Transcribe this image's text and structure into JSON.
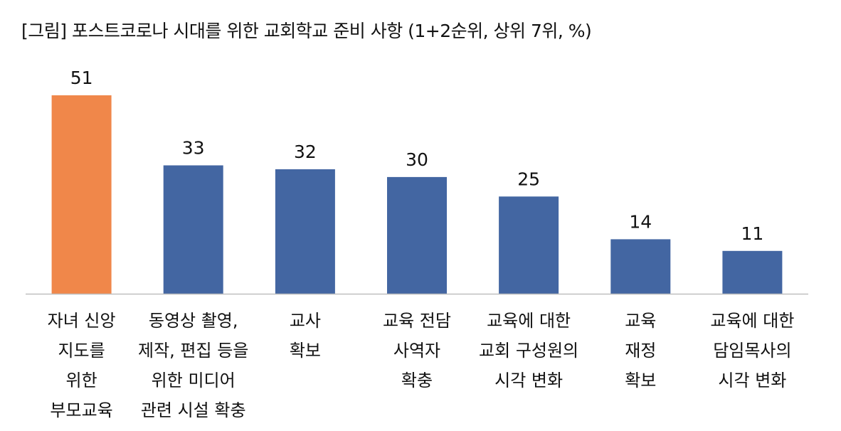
{
  "chart_data": {
    "type": "bar",
    "title": "[그림] 포스트코로나 시대를 위한 교회학교 준비 사항 (1+2순위, 상위 7위, %)",
    "xlabel": "",
    "ylabel": "",
    "ylim": [
      0,
      55
    ],
    "grid": false,
    "legend": "none",
    "categories": [
      [
        "자녀 신앙",
        "지도를",
        "위한",
        "부모교육"
      ],
      [
        "동영상 촬영,",
        "제작, 편집 등을",
        "위한 미디어",
        "관련 시설 확충"
      ],
      [
        "교사",
        "확보"
      ],
      [
        "교육 전담",
        "사역자",
        "확충"
      ],
      [
        "교육에 대한",
        "교회 구성원의",
        "시각 변화"
      ],
      [
        "교육",
        "재정",
        "확보"
      ],
      [
        "교육에 대한",
        "담임목사의",
        "시각 변화"
      ]
    ],
    "values": [
      51,
      33,
      32,
      30,
      25,
      14,
      11
    ],
    "highlight_index": 0,
    "colors": {
      "highlight": "#F0874A",
      "bar": "#4366A2",
      "axis": "#BFBFBF"
    }
  }
}
